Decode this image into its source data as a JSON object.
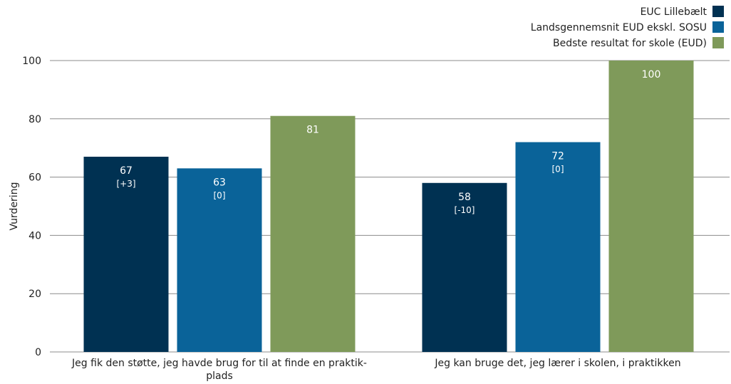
{
  "chart_data": {
    "type": "bar",
    "ylabel": "Vurdering",
    "ylim": [
      0,
      100
    ],
    "yticks": [
      0,
      20,
      40,
      60,
      80,
      100
    ],
    "grid": true,
    "legend_position": "top-right",
    "categories": [
      [
        "Jeg fik den støtte, jeg havde brug for til at finde en praktik-",
        "plads"
      ],
      [
        "Jeg kan bruge det, jeg lærer i skolen, i praktikken"
      ]
    ],
    "series": [
      {
        "name": "EUC Lillebælt",
        "color": "#003152",
        "values": [
          67,
          58
        ],
        "changes": [
          "[+3]",
          "[-10]"
        ]
      },
      {
        "name": "Landsgennemsnit EUD ekskl. SOSU",
        "color": "#0A6399",
        "values": [
          63,
          72
        ],
        "changes": [
          "[0]",
          "[0]"
        ]
      },
      {
        "name": "Bedste resultat for skole (EUD)",
        "color": "#7F9A5A",
        "values": [
          81,
          100
        ],
        "changes": [
          "",
          ""
        ]
      }
    ]
  }
}
